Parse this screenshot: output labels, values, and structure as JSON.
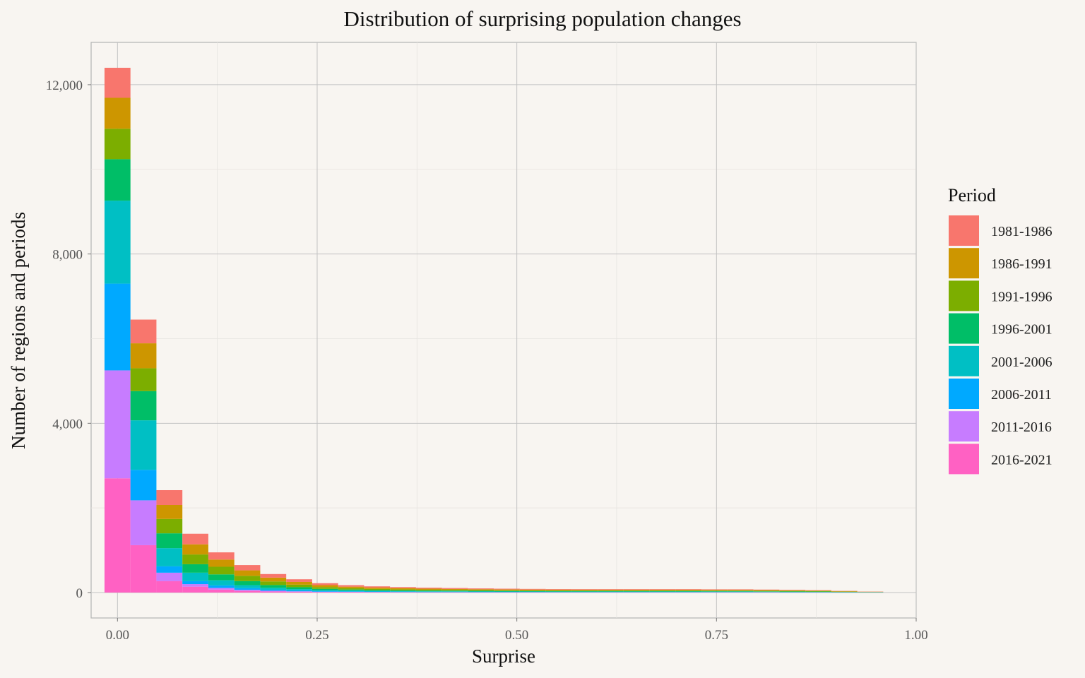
{
  "chart_data": {
    "type": "bar",
    "title": "Distribution of surprising population changes",
    "xlabel": "Surprise",
    "ylabel": "Number of regions and periods",
    "legend_title": "Period",
    "legend_position": "right",
    "grid": true,
    "stacked": true,
    "xlim": [
      -0.033,
      1.0
    ],
    "ylim": [
      -600,
      13000
    ],
    "x_ticks": [
      0.0,
      0.25,
      0.5,
      0.75,
      1.0
    ],
    "x_tick_labels": [
      "0.00",
      "0.25",
      "0.50",
      "0.75",
      "1.00"
    ],
    "y_ticks": [
      0,
      4000,
      8000,
      12000
    ],
    "y_tick_labels": [
      "0",
      "4,000",
      "8,000",
      "12,000"
    ],
    "bin_width": 0.0325,
    "x": [
      0.0,
      0.0325,
      0.065,
      0.0975,
      0.13,
      0.1625,
      0.195,
      0.2275,
      0.26,
      0.2925,
      0.325,
      0.3575,
      0.39,
      0.4225,
      0.455,
      0.4875,
      0.52,
      0.5525,
      0.585,
      0.6175,
      0.65,
      0.6825,
      0.715,
      0.7475,
      0.78,
      0.8125,
      0.845,
      0.8775,
      0.91,
      0.9425
    ],
    "series": [
      {
        "name": "2016-2021",
        "color": "#ff61c3",
        "values": [
          2700,
          1120,
          270,
          140,
          70,
          40,
          25,
          18,
          12,
          10,
          8,
          7,
          6,
          6,
          5,
          5,
          5,
          4,
          4,
          4,
          4,
          4,
          4,
          4,
          4,
          4,
          3,
          3,
          2,
          2
        ]
      },
      {
        "name": "2011-2016",
        "color": "#c77cff",
        "values": [
          2550,
          1060,
          200,
          60,
          40,
          25,
          18,
          12,
          9,
          8,
          7,
          6,
          5,
          5,
          5,
          4,
          4,
          4,
          4,
          4,
          4,
          4,
          4,
          4,
          4,
          4,
          3,
          3,
          2,
          2
        ]
      },
      {
        "name": "2006-2011",
        "color": "#00a9ff",
        "values": [
          2050,
          720,
          150,
          70,
          60,
          40,
          25,
          20,
          15,
          12,
          10,
          9,
          8,
          8,
          7,
          7,
          6,
          6,
          6,
          6,
          6,
          6,
          6,
          6,
          6,
          5,
          5,
          4,
          3,
          2
        ]
      },
      {
        "name": "2001-2006",
        "color": "#00bfc4",
        "values": [
          1960,
          1170,
          430,
          200,
          120,
          70,
          45,
          32,
          22,
          18,
          15,
          13,
          12,
          11,
          10,
          9,
          9,
          8,
          8,
          8,
          8,
          8,
          8,
          8,
          8,
          7,
          7,
          6,
          4,
          3
        ]
      },
      {
        "name": "1996-2001",
        "color": "#00be67",
        "values": [
          980,
          690,
          350,
          200,
          140,
          95,
          65,
          45,
          30,
          24,
          20,
          18,
          16,
          15,
          14,
          13,
          12,
          12,
          12,
          12,
          12,
          12,
          12,
          11,
          11,
          10,
          9,
          8,
          6,
          4
        ]
      },
      {
        "name": "1991-1996",
        "color": "#7cae00",
        "values": [
          720,
          540,
          340,
          230,
          180,
          125,
          85,
          60,
          42,
          32,
          27,
          24,
          21,
          19,
          18,
          17,
          16,
          15,
          15,
          15,
          15,
          15,
          15,
          14,
          14,
          13,
          12,
          10,
          7,
          4
        ]
      },
      {
        "name": "1986-1991",
        "color": "#cd9600",
        "values": [
          730,
          590,
          330,
          240,
          170,
          130,
          90,
          65,
          47,
          36,
          30,
          27,
          24,
          22,
          20,
          19,
          18,
          17,
          16,
          16,
          16,
          16,
          16,
          15,
          15,
          14,
          13,
          11,
          8,
          4
        ]
      },
      {
        "name": "1981-1986",
        "color": "#f8766d",
        "values": [
          710,
          560,
          350,
          250,
          170,
          125,
          85,
          62,
          45,
          35,
          30,
          26,
          23,
          21,
          19,
          18,
          17,
          16,
          16,
          16,
          16,
          16,
          16,
          15,
          15,
          14,
          13,
          11,
          8,
          4
        ]
      }
    ]
  }
}
